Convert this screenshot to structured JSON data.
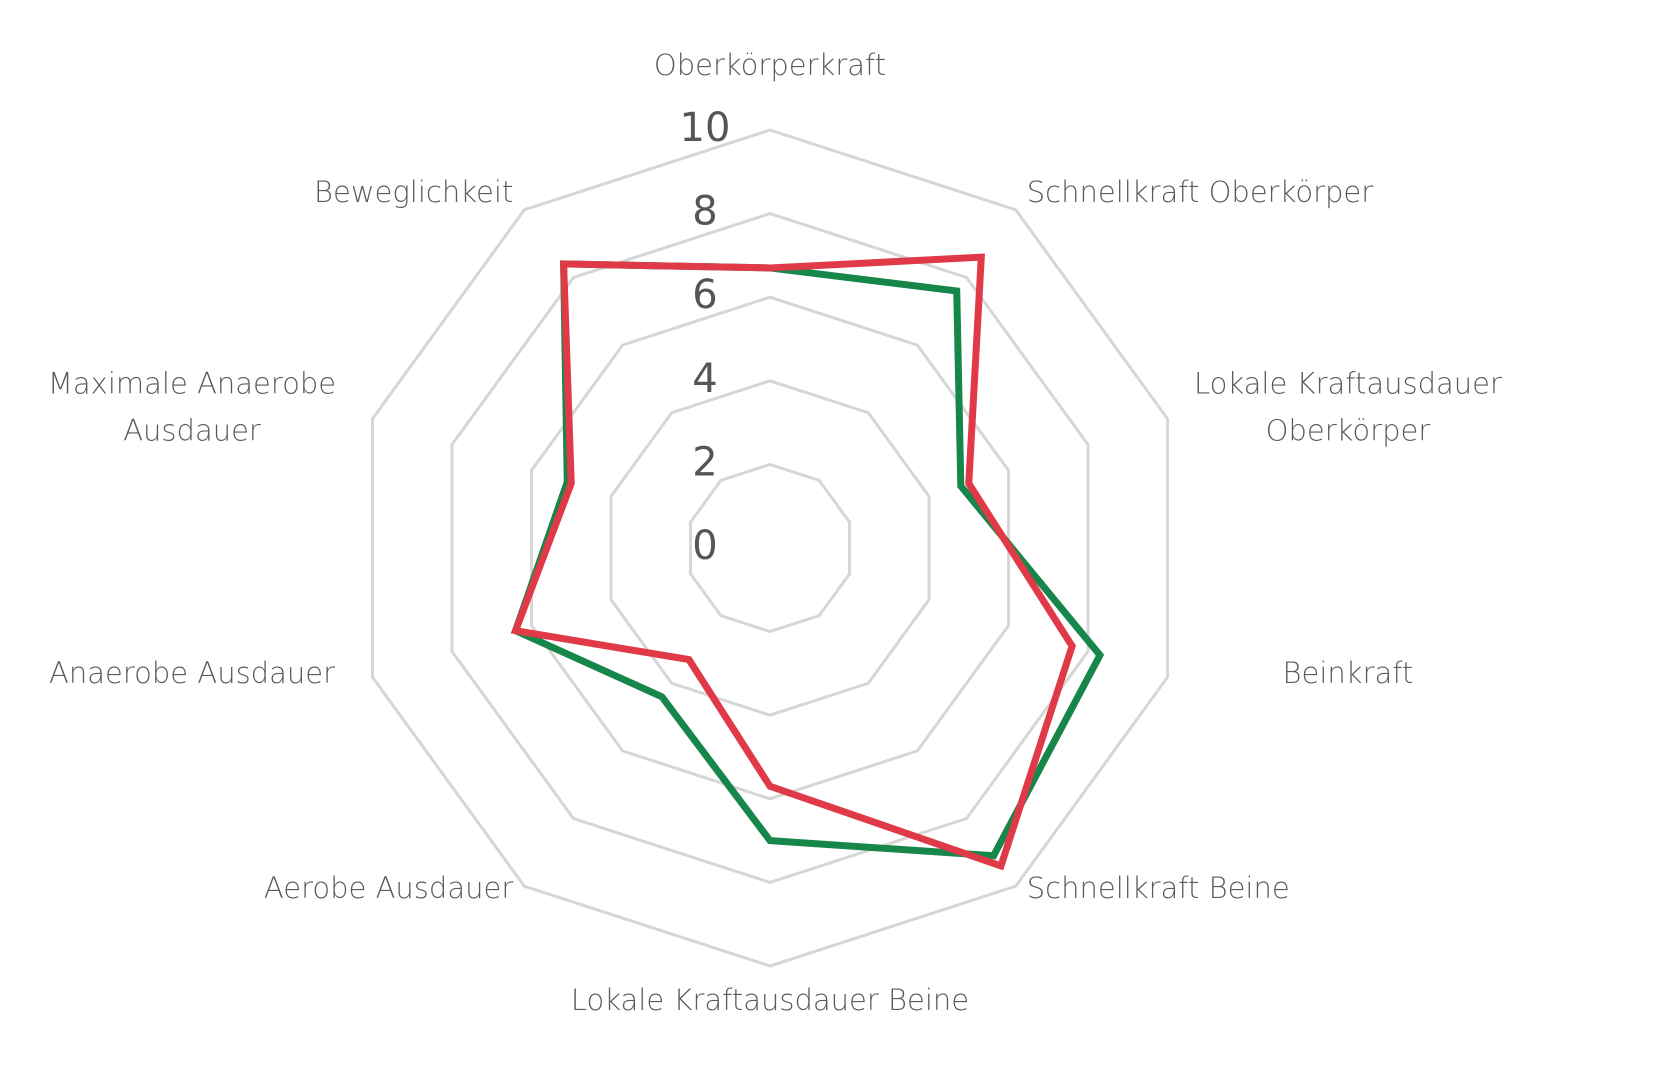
{
  "chart_data": {
    "type": "radar",
    "categories": [
      "Oberkörperkraft",
      "Schnellkraft Oberkörper",
      "Lokale Kraftausdauer Oberkörper",
      "Beinkraft",
      "Schnellkraft Beine",
      "Lokale Kraftausdauer Beine",
      "Aerobe Ausdauer",
      "Anaerobe Ausdauer",
      "Maximale Anaerobe Ausdauer",
      "Beweglichkeit"
    ],
    "series": [
      {
        "color": "#17864a",
        "values": [
          6.7,
          7.6,
          4.8,
          8.3,
          9.1,
          7.0,
          4.4,
          6.4,
          5.1,
          8.4
        ]
      },
      {
        "color": "#e03a48",
        "values": [
          6.7,
          8.6,
          5.0,
          7.6,
          9.4,
          5.7,
          3.3,
          6.4,
          5.0,
          8.4
        ]
      }
    ],
    "ylim": [
      0,
      10
    ],
    "yticks": [
      0,
      2,
      4,
      6,
      8,
      10
    ],
    "grid": true
  }
}
